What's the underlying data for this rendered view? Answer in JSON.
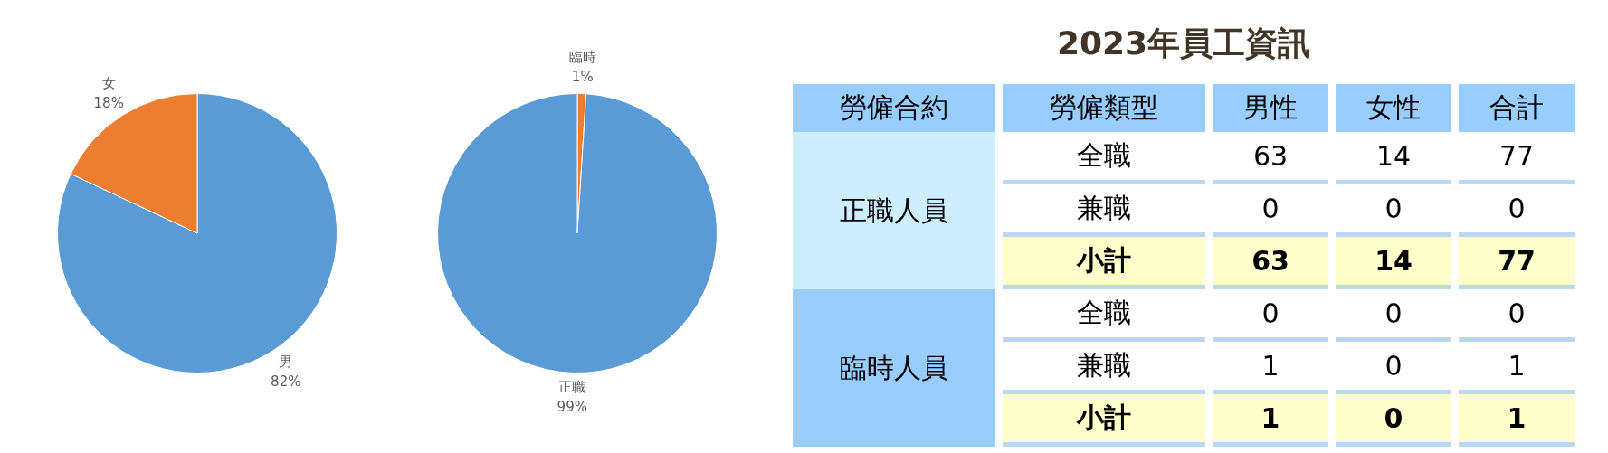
{
  "chart_data": [
    {
      "type": "pie",
      "categories": [
        "男",
        "女"
      ],
      "values": [
        82,
        18
      ],
      "colors": [
        "#5b9bd5",
        "#ed7d31"
      ],
      "value_labels": [
        "82%",
        "18%"
      ]
    },
    {
      "type": "pie",
      "categories": [
        "臨時",
        "正職"
      ],
      "values": [
        1,
        99
      ],
      "colors": [
        "#ed7d31",
        "#5b9bd5"
      ],
      "value_labels": [
        "1%",
        "99%"
      ]
    },
    {
      "type": "heatmap",
      "title": "2023年員工資訊",
      "categories": [
        "男性",
        "女性",
        "合計"
      ],
      "y_categories": [
        "全職",
        "兼職",
        "小計",
        "全職",
        "兼職",
        "小計"
      ],
      "cells": [
        [
          63,
          14,
          77
        ],
        [
          0,
          0,
          0
        ],
        [
          63,
          14,
          77
        ],
        [
          0,
          0,
          0
        ],
        [
          1,
          0,
          1
        ],
        [
          1,
          0,
          1
        ]
      ],
      "data_labels": true,
      "annotations": [
        "勞僱合約",
        "勞僱類型",
        "正職人員",
        "臨時人員"
      ]
    }
  ]
}
